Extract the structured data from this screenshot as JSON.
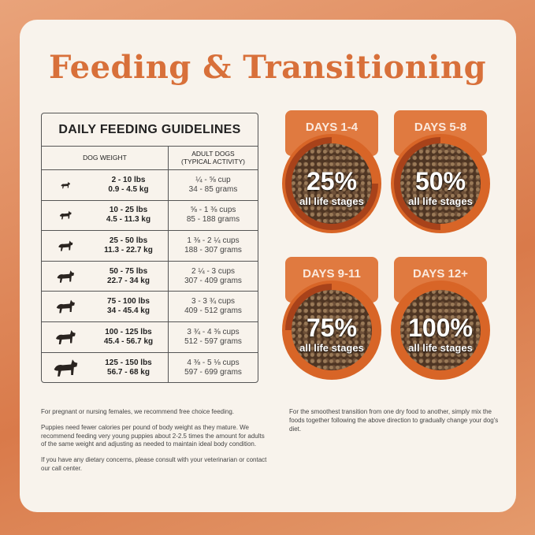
{
  "title": "Feeding & Transitioning",
  "table": {
    "heading": "DAILY FEEDING GUIDELINES",
    "col1": "DOG WEIGHT",
    "col2": "ADULT DOGS",
    "col2_sub": "(TYPICAL ACTIVITY)",
    "rows": [
      {
        "lbs": "2 - 10 lbs",
        "kg": "0.9 - 4.5 kg",
        "cups": "¼ - ⅝ cup",
        "grams": "34 - 85 grams"
      },
      {
        "lbs": "10 - 25 lbs",
        "kg": "4.5 - 11.3 kg",
        "cups": "⅝ - 1 ⅜ cups",
        "grams": "85 - 188 grams"
      },
      {
        "lbs": "25 - 50 lbs",
        "kg": "11.3 - 22.7 kg",
        "cups": "1 ⅜ - 2 ¼ cups",
        "grams": "188 - 307 grams"
      },
      {
        "lbs": "50 - 75 lbs",
        "kg": "22.7 - 34 kg",
        "cups": "2 ¼ - 3 cups",
        "grams": "307 - 409 grams"
      },
      {
        "lbs": "75 - 100 lbs",
        "kg": "34 - 45.4 kg",
        "cups": "3 - 3 ¾ cups",
        "grams": "409 - 512 grams"
      },
      {
        "lbs": "100 - 125 lbs",
        "kg": "45.4 - 56.7 kg",
        "cups": "3 ¾ - 4 ⅜ cups",
        "grams": "512 - 597 grams"
      },
      {
        "lbs": "125 - 150 lbs",
        "kg": "56.7 - 68 kg",
        "cups": "4 ⅜ - 5 ⅛ cups",
        "grams": "597 - 699 grams"
      }
    ]
  },
  "stages": [
    {
      "days": "DAYS 1-4",
      "percent": "25%",
      "label": "all life stages",
      "fraction": 0.25
    },
    {
      "days": "DAYS 5-8",
      "percent": "50%",
      "label": "all life stages",
      "fraction": 0.5
    },
    {
      "days": "DAYS 9-11",
      "percent": "75%",
      "label": "all life stages",
      "fraction": 0.75
    },
    {
      "days": "DAYS 12+",
      "percent": "100%",
      "label": "all life stages",
      "fraction": 1
    }
  ],
  "notes_left": [
    "For pregnant or nursing females, we recommend free choice feeding.",
    "Puppies need fewer calories per pound of body weight as they mature. We recommend feeding very young puppies about 2-2.5 times the amount for adults of the same weight and adjusting as needed to maintain ideal body condition.",
    "If you have any dietary concerns, please consult with your veterinarian or contact our call center."
  ],
  "note_right": "For the smoothest transition from one dry food to another, simply mix the foods together following the above direction to gradually change your dog's diet.",
  "colors": {
    "accent": "#d8703a",
    "background": "#f8f3ec"
  }
}
